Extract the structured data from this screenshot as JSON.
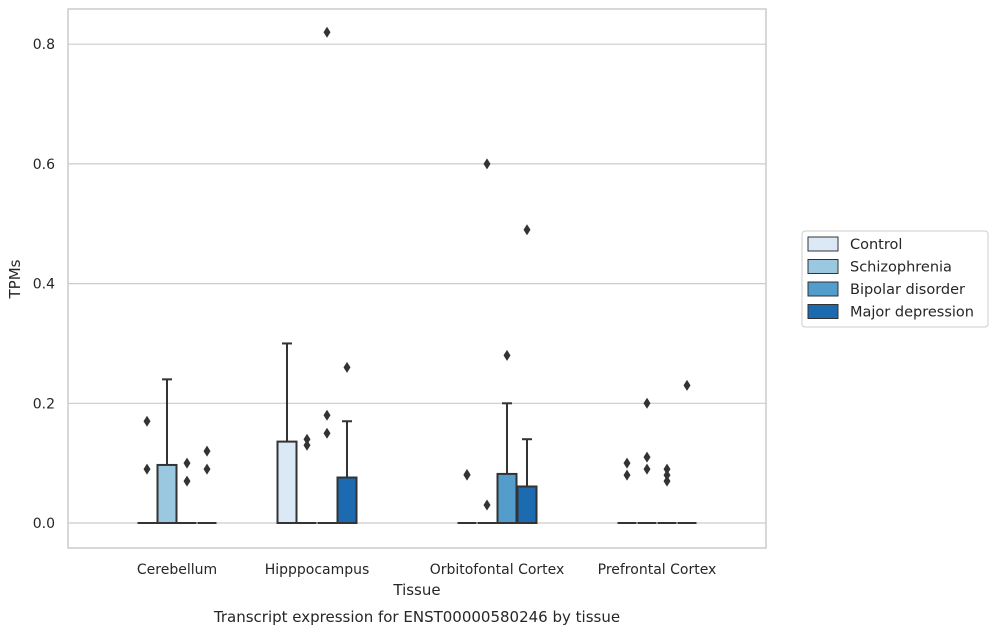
{
  "chart_data": {
    "type": "box",
    "title": "",
    "caption": "Transcript expression for ENST00000580246 by tissue",
    "xlabel": "Tissue",
    "ylabel": "TPMs",
    "ylim": [
      -0.04,
      0.862
    ],
    "yticks": [
      0.0,
      0.2,
      0.4,
      0.6,
      0.8
    ],
    "ytick_labels": [
      "0.0",
      "0.2",
      "0.4",
      "0.6",
      "0.8"
    ],
    "grid": "horizontal",
    "legend_position": "right",
    "categories": [
      "Cerebellum",
      "Hipppocampus",
      "Orbitofontal Cortex",
      "Prefrontal Cortex"
    ],
    "series": [
      {
        "name": "Control",
        "color": "#dbe9f6",
        "boxes": [
          {
            "q1": 0,
            "median": 0,
            "q3": 0,
            "whisker_low": 0,
            "whisker_high": 0,
            "outliers": [
              0.09,
              0.17
            ]
          },
          {
            "q1": 0,
            "median": 0,
            "q3": 0.136,
            "whisker_low": 0,
            "whisker_high": 0.3,
            "outliers": []
          },
          {
            "q1": 0,
            "median": 0,
            "q3": 0,
            "whisker_low": 0,
            "whisker_high": 0,
            "outliers": [
              0.08,
              0.081
            ]
          },
          {
            "q1": 0,
            "median": 0,
            "q3": 0,
            "whisker_low": 0,
            "whisker_high": 0,
            "outliers": [
              0.08,
              0.1
            ]
          }
        ]
      },
      {
        "name": "Schizophrenia",
        "color": "#9ac8e0",
        "boxes": [
          {
            "q1": 0,
            "median": 0,
            "q3": 0.097,
            "whisker_low": 0,
            "whisker_high": 0.24,
            "outliers": []
          },
          {
            "q1": 0,
            "median": 0,
            "q3": 0,
            "whisker_low": 0,
            "whisker_high": 0,
            "outliers": [
              0.13,
              0.14
            ]
          },
          {
            "q1": 0,
            "median": 0,
            "q3": 0,
            "whisker_low": 0,
            "whisker_high": 0,
            "outliers": [
              0.03,
              0.6
            ]
          },
          {
            "q1": 0,
            "median": 0,
            "q3": 0,
            "whisker_low": 0,
            "whisker_high": 0,
            "outliers": [
              0.09,
              0.11,
              0.2
            ]
          }
        ]
      },
      {
        "name": "Bipolar disorder",
        "color": "#529dcc",
        "boxes": [
          {
            "q1": 0,
            "median": 0,
            "q3": 0,
            "whisker_low": 0,
            "whisker_high": 0,
            "outliers": [
              0.07,
              0.1
            ]
          },
          {
            "q1": 0,
            "median": 0,
            "q3": 0,
            "whisker_low": 0,
            "whisker_high": 0,
            "outliers": [
              0.15,
              0.18,
              0.82
            ]
          },
          {
            "q1": 0,
            "median": 0,
            "q3": 0.082,
            "whisker_low": 0,
            "whisker_high": 0.2,
            "outliers": [
              0.28
            ]
          },
          {
            "q1": 0,
            "median": 0,
            "q3": 0,
            "whisker_low": 0,
            "whisker_high": 0,
            "outliers": [
              0.07,
              0.08,
              0.09
            ]
          }
        ]
      },
      {
        "name": "Major depression",
        "color": "#1c6aaf",
        "boxes": [
          {
            "q1": 0,
            "median": 0,
            "q3": 0,
            "whisker_low": 0,
            "whisker_high": 0,
            "outliers": [
              0.09,
              0.12
            ]
          },
          {
            "q1": 0,
            "median": 0,
            "q3": 0.076,
            "whisker_low": 0,
            "whisker_high": 0.17,
            "outliers": [
              0.26
            ]
          },
          {
            "q1": 0,
            "median": 0,
            "q3": 0.061,
            "whisker_low": 0,
            "whisker_high": 0.14,
            "outliers": [
              0.49
            ]
          },
          {
            "q1": 0,
            "median": 0,
            "q3": 0,
            "whisker_low": 0,
            "whisker_high": 0,
            "outliers": [
              0.23
            ]
          }
        ]
      }
    ]
  }
}
